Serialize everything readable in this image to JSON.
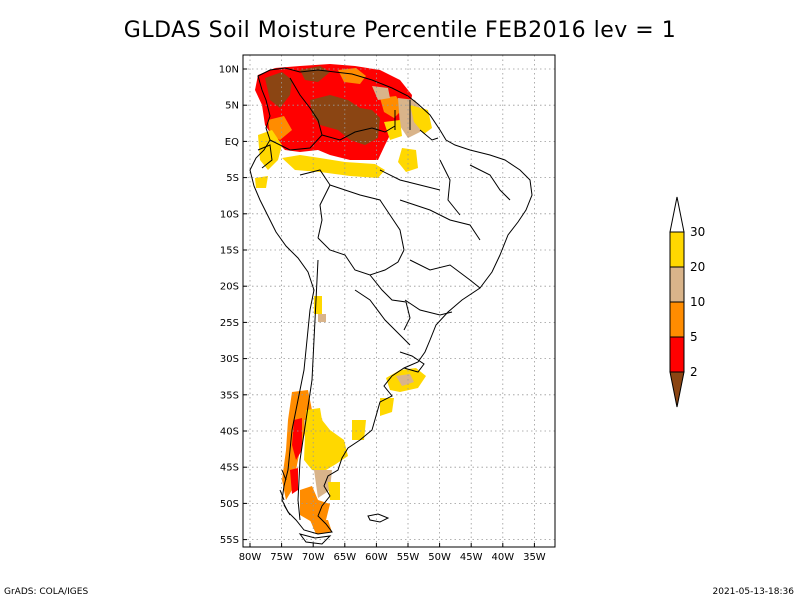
{
  "title": "GLDAS Soil Moisture Percentile FEB2016 lev = 1",
  "footer": {
    "left": "GrADS: COLA/IGES",
    "right": "2021-05-13-18:36"
  },
  "map": {
    "lat_ticks": [
      "10N",
      "5N",
      "EQ",
      "5S",
      "10S",
      "15S",
      "20S",
      "25S",
      "30S",
      "35S",
      "40S",
      "45S",
      "50S",
      "55S"
    ],
    "lon_ticks": [
      "80W",
      "75W",
      "70W",
      "65W",
      "60W",
      "55W",
      "50W",
      "45W",
      "40W",
      "35W"
    ],
    "grid": true,
    "background": "#ffffff"
  },
  "colorbar": {
    "labels": [
      "30",
      "20",
      "10",
      "5",
      "2"
    ],
    "colors": [
      "#ffffff",
      "#ffd800",
      "#d9b48a",
      "#ff8c00",
      "#ff0000",
      "#8b4513"
    ],
    "categories": [
      {
        "range": "> 30",
        "color": "#ffffff"
      },
      {
        "range": "20-30",
        "color": "#ffd800"
      },
      {
        "range": "10-20",
        "color": "#d9b48a"
      },
      {
        "range": "5-10",
        "color": "#ff8c00"
      },
      {
        "range": "2-5",
        "color": "#ff0000"
      },
      {
        "range": "< 2",
        "color": "#8b4513"
      }
    ]
  }
}
